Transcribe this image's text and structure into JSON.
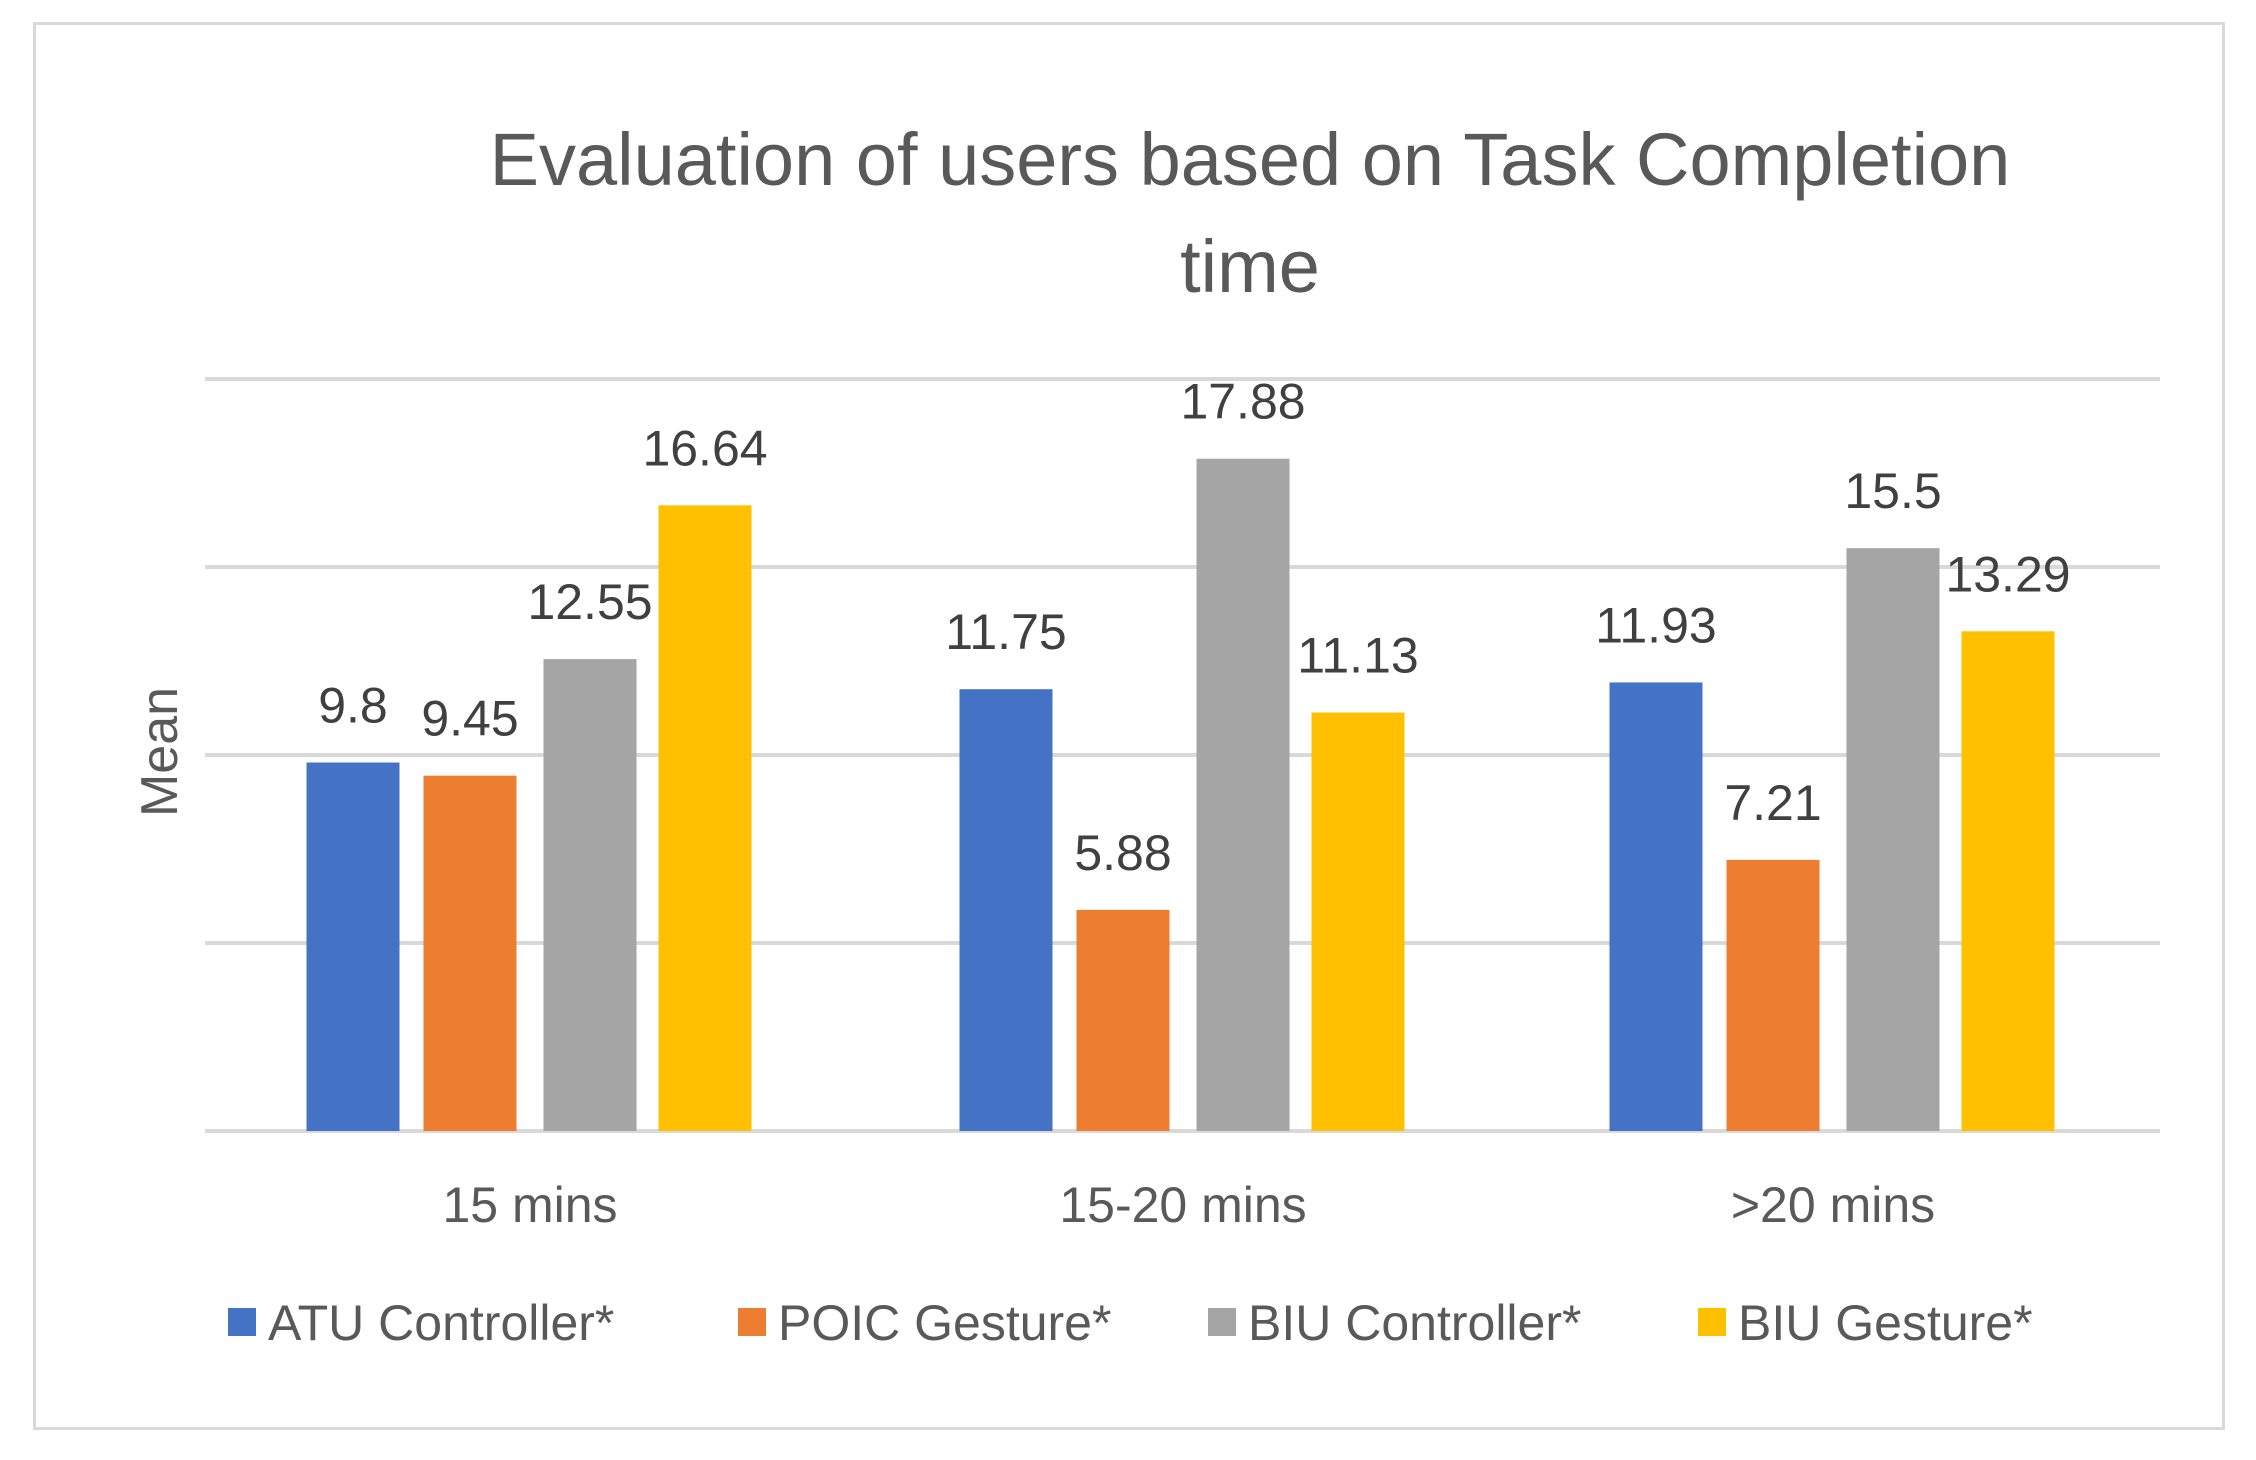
{
  "chart_data": {
    "type": "bar",
    "title": "Evaluation of users based on Task Completion time",
    "title_lines": [
      "Evaluation of users based on Task Completion",
      "time"
    ],
    "xlabel": "",
    "ylabel": "Mean",
    "ylim": [
      0,
      20
    ],
    "y_gridline_step": 5,
    "y_tick_labels_shown": false,
    "grid": true,
    "legend_position": "bottom",
    "categories": [
      "15 mins",
      "15-20 mins",
      ">20 mins"
    ],
    "series": [
      {
        "name": "ATU Controller*",
        "color": "#4472C4",
        "values": [
          9.8,
          11.75,
          11.93
        ],
        "labels": [
          "9.8",
          "11.75",
          "11.93"
        ]
      },
      {
        "name": "POIC Gesture*",
        "color": "#ED7D31",
        "values": [
          9.45,
          5.88,
          7.21
        ],
        "labels": [
          "9.45",
          "5.88",
          "7.21"
        ]
      },
      {
        "name": "BIU Controller*",
        "color": "#A5A5A5",
        "values": [
          12.55,
          17.88,
          15.5
        ],
        "labels": [
          "12.55",
          "17.88",
          "15.5"
        ]
      },
      {
        "name": "BIU Gesture*",
        "color": "#FFC000",
        "values": [
          16.64,
          11.13,
          13.29
        ],
        "labels": [
          "16.64",
          "11.13",
          "13.29"
        ]
      }
    ]
  },
  "colors": {
    "gridline": "#d9d9d9",
    "frame": "#d9d9d9"
  }
}
